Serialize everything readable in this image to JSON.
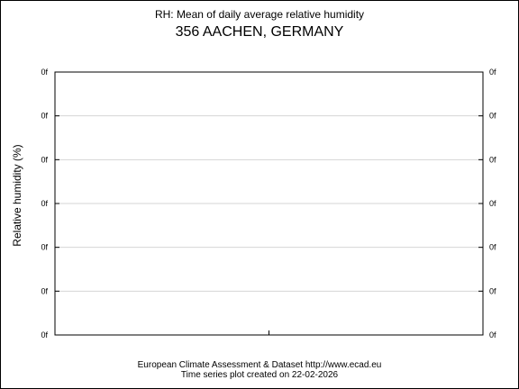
{
  "header": {
    "title": "RH: Mean of daily average relative humidity",
    "subtitle": "356 AACHEN, GERMANY"
  },
  "footer": {
    "line1": "European Climate Assessment & Dataset  http://www.ecad.eu",
    "line2": "Time series plot created on 22-02-2026"
  },
  "chart_data": {
    "type": "line",
    "title": "RH: Mean of daily average relative humidity",
    "subtitle": "356 AACHEN, GERMANY",
    "xlabel": "",
    "ylabel": "Relative humidity (%)",
    "y_tick_labels": [
      "0f",
      "0f",
      "0f",
      "0f",
      "0f",
      "0f",
      "0f"
    ],
    "x_tick_labels": [],
    "series": [],
    "grid": true,
    "right_axis_labels": true
  }
}
